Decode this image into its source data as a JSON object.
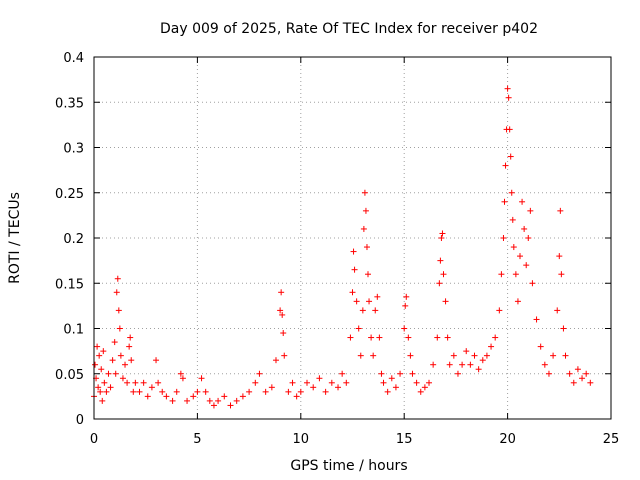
{
  "chart_data": {
    "type": "scatter",
    "title": "Day 009 of 2025, Rate Of TEC Index for receiver p402",
    "xlabel": "GPS time / hours",
    "ylabel": "ROTI / TECUs",
    "xlim": [
      0,
      25
    ],
    "ylim": [
      0,
      0.4
    ],
    "xticks": [
      0,
      5,
      10,
      15,
      20,
      25
    ],
    "xtick_labels": [
      "0",
      "5",
      "10",
      "15",
      "20",
      "25"
    ],
    "yticks": [
      0,
      0.05,
      0.1,
      0.15,
      0.2,
      0.25,
      0.3,
      0.35,
      0.4
    ],
    "ytick_labels": [
      "0",
      "0.05",
      "0.1",
      "0.15",
      "0.2",
      "0.25",
      "0.3",
      "0.35",
      "0.4"
    ],
    "grid": true,
    "marker": "+",
    "color": "#ff0000",
    "series": [
      {
        "points": [
          [
            0.0,
            0.025
          ],
          [
            0.05,
            0.06
          ],
          [
            0.1,
            0.045
          ],
          [
            0.15,
            0.08
          ],
          [
            0.2,
            0.035
          ],
          [
            0.25,
            0.07
          ],
          [
            0.3,
            0.03
          ],
          [
            0.35,
            0.055
          ],
          [
            0.4,
            0.02
          ],
          [
            0.45,
            0.075
          ],
          [
            0.5,
            0.04
          ],
          [
            0.6,
            0.03
          ],
          [
            0.7,
            0.05
          ],
          [
            0.8,
            0.035
          ],
          [
            0.9,
            0.065
          ],
          [
            1.0,
            0.085
          ],
          [
            1.05,
            0.05
          ],
          [
            1.1,
            0.14
          ],
          [
            1.15,
            0.155
          ],
          [
            1.2,
            0.12
          ],
          [
            1.25,
            0.1
          ],
          [
            1.3,
            0.07
          ],
          [
            1.4,
            0.045
          ],
          [
            1.5,
            0.06
          ],
          [
            1.6,
            0.04
          ],
          [
            1.7,
            0.08
          ],
          [
            1.75,
            0.09
          ],
          [
            1.8,
            0.065
          ],
          [
            1.9,
            0.03
          ],
          [
            2.0,
            0.04
          ],
          [
            2.2,
            0.03
          ],
          [
            2.4,
            0.04
          ],
          [
            2.6,
            0.025
          ],
          [
            2.8,
            0.035
          ],
          [
            3.0,
            0.065
          ],
          [
            3.1,
            0.04
          ],
          [
            3.3,
            0.03
          ],
          [
            3.5,
            0.025
          ],
          [
            3.8,
            0.02
          ],
          [
            4.0,
            0.03
          ],
          [
            4.2,
            0.05
          ],
          [
            4.3,
            0.045
          ],
          [
            4.5,
            0.02
          ],
          [
            4.8,
            0.025
          ],
          [
            5.0,
            0.03
          ],
          [
            5.2,
            0.045
          ],
          [
            5.4,
            0.03
          ],
          [
            5.6,
            0.02
          ],
          [
            5.8,
            0.015
          ],
          [
            6.0,
            0.02
          ],
          [
            6.3,
            0.025
          ],
          [
            6.6,
            0.015
          ],
          [
            6.9,
            0.02
          ],
          [
            7.2,
            0.025
          ],
          [
            7.5,
            0.03
          ],
          [
            7.8,
            0.04
          ],
          [
            8.0,
            0.05
          ],
          [
            8.3,
            0.03
          ],
          [
            8.6,
            0.035
          ],
          [
            8.8,
            0.065
          ],
          [
            9.0,
            0.12
          ],
          [
            9.05,
            0.14
          ],
          [
            9.1,
            0.115
          ],
          [
            9.15,
            0.095
          ],
          [
            9.2,
            0.07
          ],
          [
            9.4,
            0.03
          ],
          [
            9.6,
            0.04
          ],
          [
            9.8,
            0.025
          ],
          [
            10.0,
            0.03
          ],
          [
            10.3,
            0.04
          ],
          [
            10.6,
            0.035
          ],
          [
            10.9,
            0.045
          ],
          [
            11.2,
            0.03
          ],
          [
            11.5,
            0.04
          ],
          [
            11.8,
            0.035
          ],
          [
            12.0,
            0.05
          ],
          [
            12.2,
            0.04
          ],
          [
            12.4,
            0.09
          ],
          [
            12.5,
            0.14
          ],
          [
            12.55,
            0.185
          ],
          [
            12.6,
            0.165
          ],
          [
            12.7,
            0.13
          ],
          [
            12.8,
            0.1
          ],
          [
            12.9,
            0.07
          ],
          [
            13.0,
            0.12
          ],
          [
            13.05,
            0.21
          ],
          [
            13.1,
            0.25
          ],
          [
            13.15,
            0.23
          ],
          [
            13.2,
            0.19
          ],
          [
            13.25,
            0.16
          ],
          [
            13.3,
            0.13
          ],
          [
            13.4,
            0.09
          ],
          [
            13.5,
            0.07
          ],
          [
            13.6,
            0.12
          ],
          [
            13.7,
            0.135
          ],
          [
            13.8,
            0.09
          ],
          [
            13.9,
            0.05
          ],
          [
            14.0,
            0.04
          ],
          [
            14.2,
            0.03
          ],
          [
            14.4,
            0.045
          ],
          [
            14.6,
            0.035
          ],
          [
            14.8,
            0.05
          ],
          [
            15.0,
            0.1
          ],
          [
            15.05,
            0.125
          ],
          [
            15.1,
            0.135
          ],
          [
            15.2,
            0.09
          ],
          [
            15.3,
            0.07
          ],
          [
            15.4,
            0.05
          ],
          [
            15.6,
            0.04
          ],
          [
            15.8,
            0.03
          ],
          [
            16.0,
            0.035
          ],
          [
            16.2,
            0.04
          ],
          [
            16.4,
            0.06
          ],
          [
            16.6,
            0.09
          ],
          [
            16.7,
            0.15
          ],
          [
            16.75,
            0.175
          ],
          [
            16.8,
            0.2
          ],
          [
            16.85,
            0.205
          ],
          [
            16.9,
            0.16
          ],
          [
            17.0,
            0.13
          ],
          [
            17.1,
            0.09
          ],
          [
            17.2,
            0.06
          ],
          [
            17.4,
            0.07
          ],
          [
            17.6,
            0.05
          ],
          [
            17.8,
            0.06
          ],
          [
            18.0,
            0.075
          ],
          [
            18.2,
            0.06
          ],
          [
            18.4,
            0.07
          ],
          [
            18.6,
            0.055
          ],
          [
            18.8,
            0.065
          ],
          [
            19.0,
            0.07
          ],
          [
            19.2,
            0.08
          ],
          [
            19.4,
            0.09
          ],
          [
            19.6,
            0.12
          ],
          [
            19.7,
            0.16
          ],
          [
            19.8,
            0.2
          ],
          [
            19.85,
            0.24
          ],
          [
            19.9,
            0.28
          ],
          [
            19.95,
            0.32
          ],
          [
            20.0,
            0.365
          ],
          [
            20.05,
            0.355
          ],
          [
            20.1,
            0.32
          ],
          [
            20.15,
            0.29
          ],
          [
            20.2,
            0.25
          ],
          [
            20.25,
            0.22
          ],
          [
            20.3,
            0.19
          ],
          [
            20.4,
            0.16
          ],
          [
            20.5,
            0.13
          ],
          [
            20.6,
            0.18
          ],
          [
            20.7,
            0.24
          ],
          [
            20.8,
            0.21
          ],
          [
            20.9,
            0.17
          ],
          [
            21.0,
            0.2
          ],
          [
            21.1,
            0.23
          ],
          [
            21.2,
            0.15
          ],
          [
            21.4,
            0.11
          ],
          [
            21.6,
            0.08
          ],
          [
            21.8,
            0.06
          ],
          [
            22.0,
            0.05
          ],
          [
            22.2,
            0.07
          ],
          [
            22.4,
            0.12
          ],
          [
            22.5,
            0.18
          ],
          [
            22.55,
            0.23
          ],
          [
            22.6,
            0.16
          ],
          [
            22.7,
            0.1
          ],
          [
            22.8,
            0.07
          ],
          [
            23.0,
            0.05
          ],
          [
            23.2,
            0.04
          ],
          [
            23.4,
            0.055
          ],
          [
            23.6,
            0.045
          ],
          [
            23.8,
            0.05
          ],
          [
            24.0,
            0.04
          ]
        ]
      }
    ]
  }
}
